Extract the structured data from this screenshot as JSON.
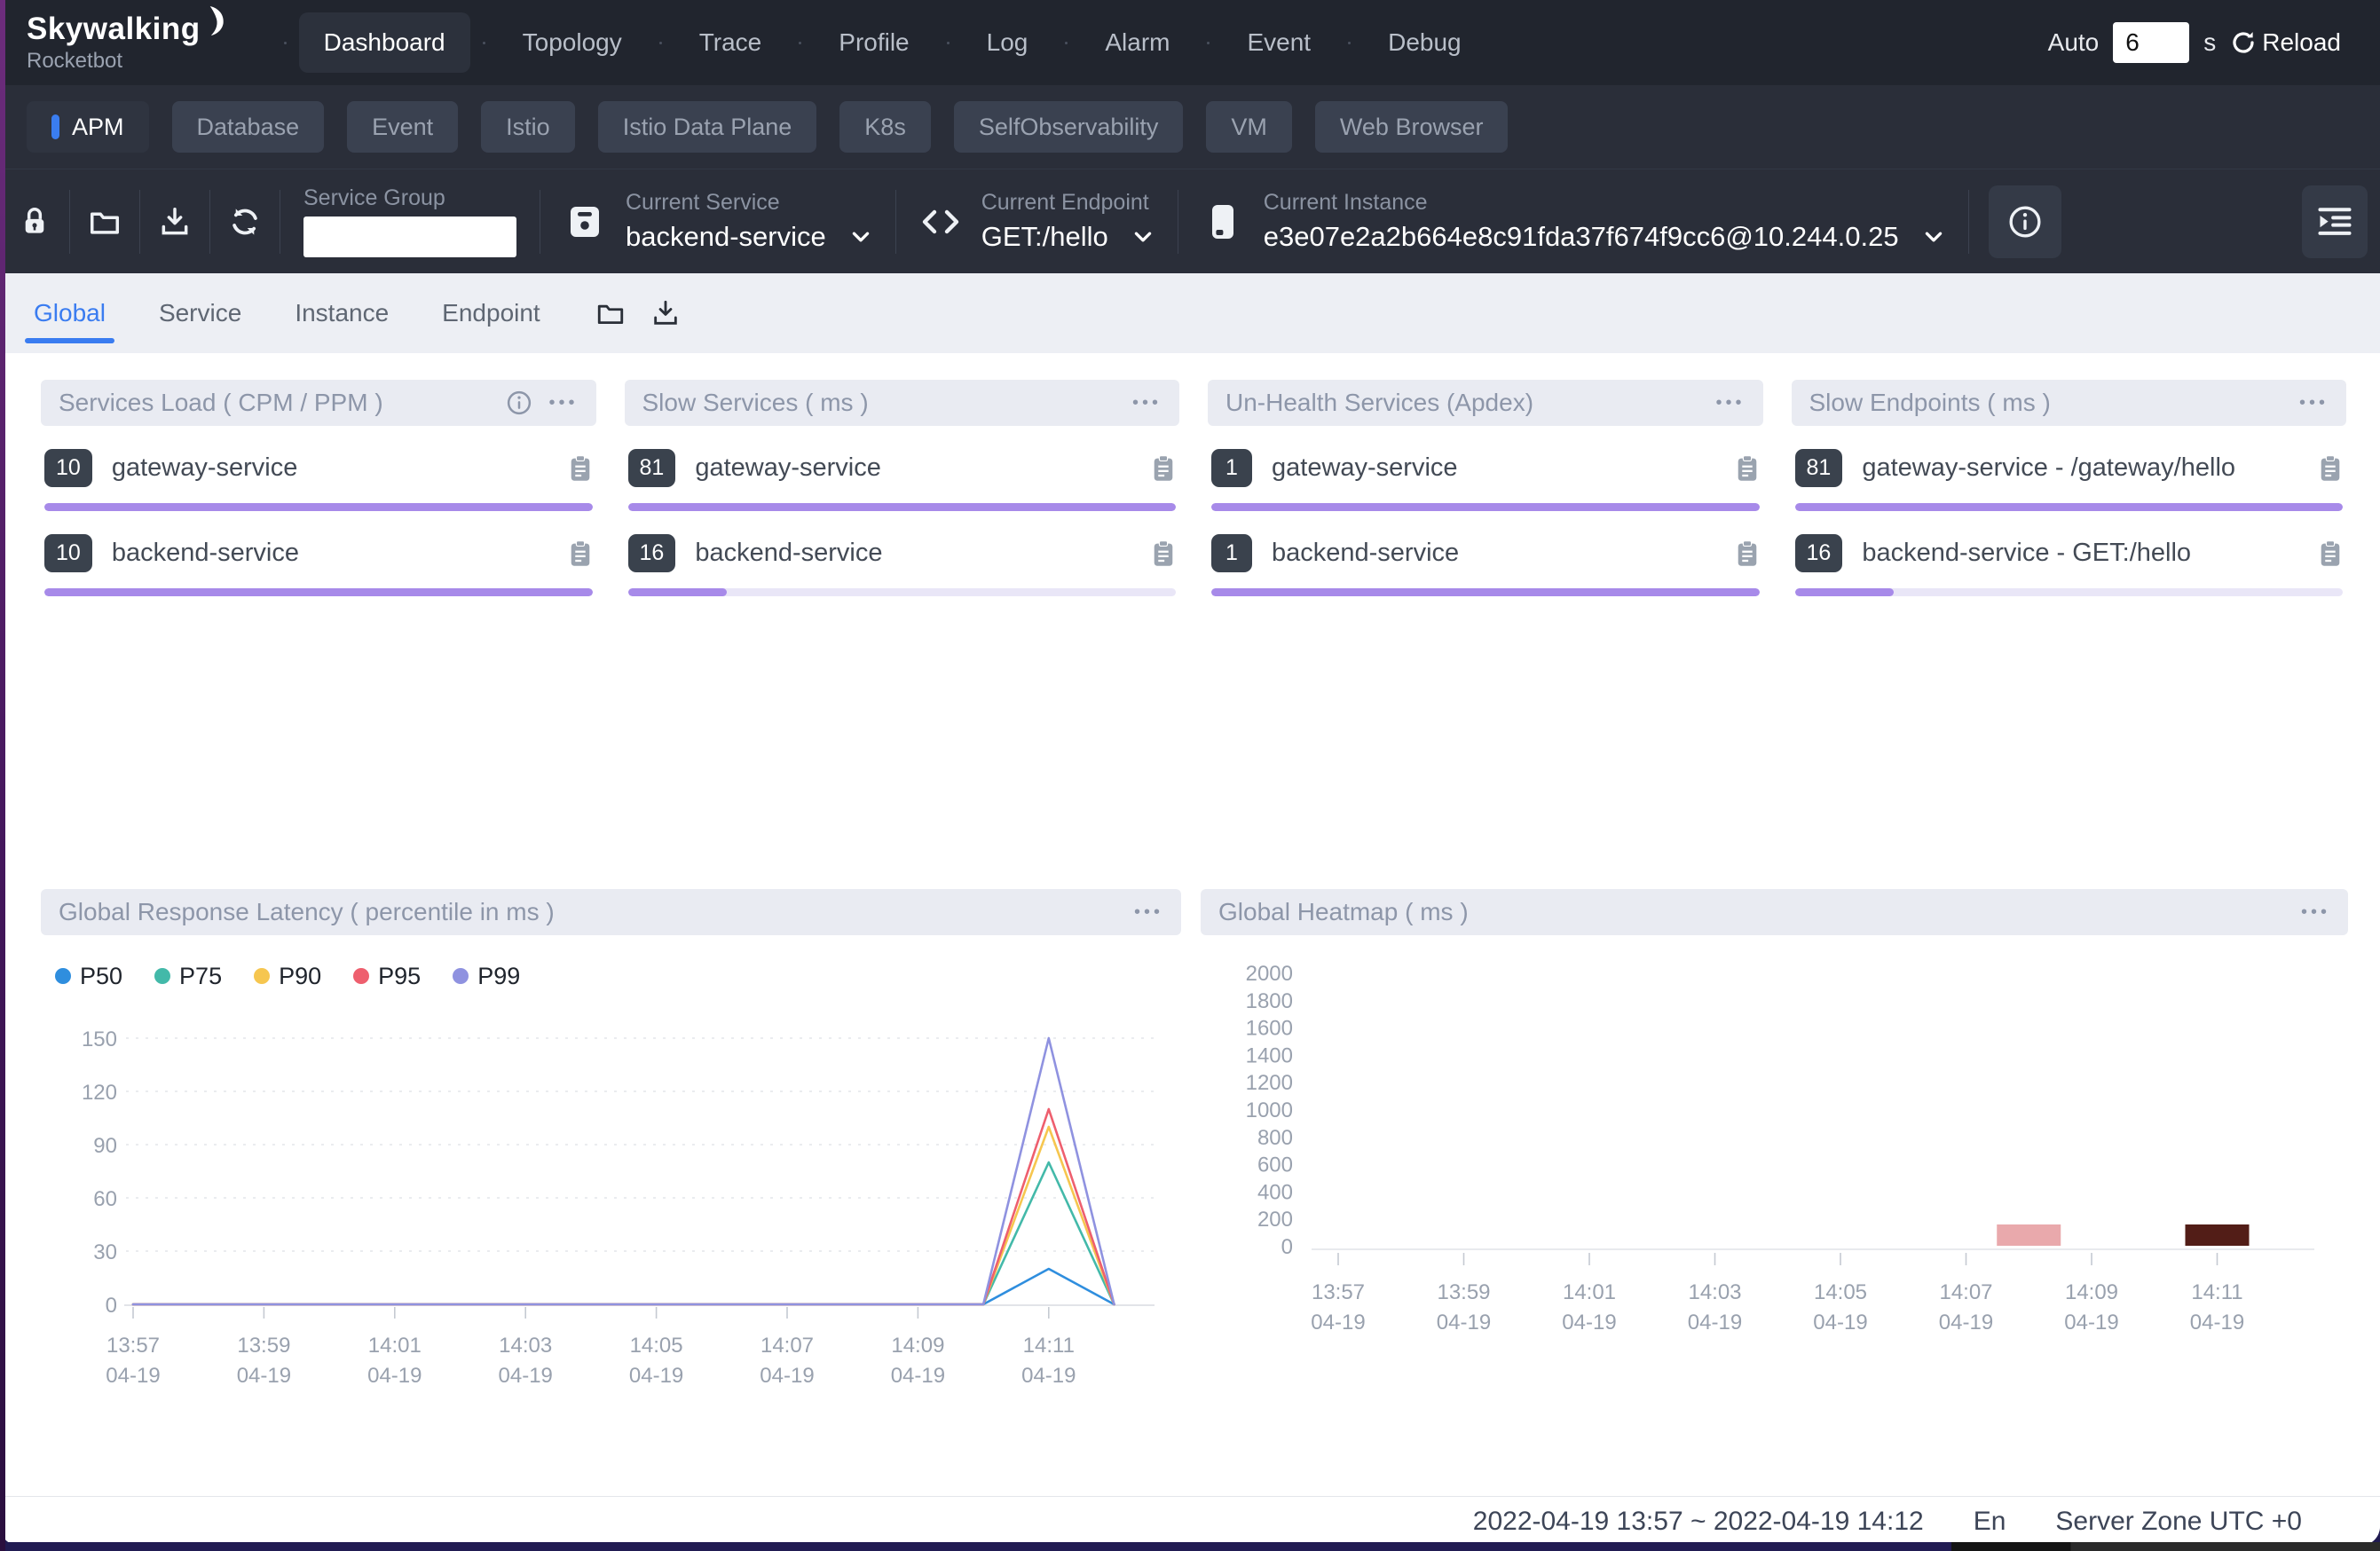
{
  "brand": {
    "name": "Skywalking",
    "subtitle": "Rocketbot"
  },
  "nav": {
    "items": [
      "Dashboard",
      "Topology",
      "Trace",
      "Profile",
      "Log",
      "Alarm",
      "Event",
      "Debug"
    ],
    "active": "Dashboard",
    "auto_label": "Auto",
    "auto_value": "6",
    "auto_unit": "s",
    "reload_label": "Reload"
  },
  "tabs": {
    "items": [
      "APM",
      "Database",
      "Event",
      "Istio",
      "Istio Data Plane",
      "K8s",
      "SelfObservability",
      "VM",
      "Web Browser"
    ],
    "active": "APM"
  },
  "toolbar": {
    "service_group": {
      "label": "Service Group",
      "value": ""
    },
    "current_service": {
      "label": "Current Service",
      "value": "backend-service"
    },
    "current_endpoint": {
      "label": "Current Endpoint",
      "value": "GET:/hello"
    },
    "current_instance": {
      "label": "Current Instance",
      "value": "e3e07e2a2b664e8c91fda37f674f9cc6@10.244.0.25"
    }
  },
  "subtabs": {
    "items": [
      "Global",
      "Service",
      "Instance",
      "Endpoint"
    ],
    "active": "Global"
  },
  "cards": [
    {
      "title": "Services Load ( CPM / PPM )",
      "has_info": true,
      "items": [
        {
          "value": "10",
          "name": "gateway-service",
          "bar_percent": 100
        },
        {
          "value": "10",
          "name": "backend-service",
          "bar_percent": 100
        }
      ]
    },
    {
      "title": "Slow Services ( ms )",
      "has_info": false,
      "items": [
        {
          "value": "81",
          "name": "gateway-service",
          "bar_percent": 100
        },
        {
          "value": "16",
          "name": "backend-service",
          "bar_percent": 18
        }
      ]
    },
    {
      "title": "Un-Health Services (Apdex)",
      "has_info": false,
      "items": [
        {
          "value": "1",
          "name": "gateway-service",
          "bar_percent": 100
        },
        {
          "value": "1",
          "name": "backend-service",
          "bar_percent": 100
        }
      ]
    },
    {
      "title": "Slow Endpoints ( ms )",
      "has_info": false,
      "items": [
        {
          "value": "81",
          "name": "gateway-service - /gateway/hello",
          "bar_percent": 100
        },
        {
          "value": "16",
          "name": "backend-service - GET:/hello",
          "bar_percent": 18
        }
      ]
    }
  ],
  "chart_data": [
    {
      "type": "line",
      "title": "Global Response Latency ( percentile in ms )",
      "x": [
        "13:57",
        "13:58",
        "13:59",
        "14:00",
        "14:01",
        "14:02",
        "14:03",
        "14:04",
        "14:05",
        "14:06",
        "14:07",
        "14:08",
        "14:09",
        "14:10",
        "14:11",
        "14:12"
      ],
      "x_label_date": "04-19",
      "x_tick_every": 2,
      "ylim": [
        0,
        150
      ],
      "y_ticks": [
        0,
        30,
        60,
        90,
        120,
        150
      ],
      "grid": "horizontal-dashed",
      "legend_position": "top-left",
      "series": [
        {
          "name": "P50",
          "color": "#2f8ede",
          "values": [
            0,
            0,
            0,
            0,
            0,
            0,
            0,
            0,
            0,
            0,
            0,
            0,
            0,
            0,
            20,
            0
          ]
        },
        {
          "name": "P75",
          "color": "#43b9a9",
          "values": [
            0,
            0,
            0,
            0,
            0,
            0,
            0,
            0,
            0,
            0,
            0,
            0,
            0,
            0,
            80,
            0
          ]
        },
        {
          "name": "P90",
          "color": "#f6c64f",
          "values": [
            0,
            0,
            0,
            0,
            0,
            0,
            0,
            0,
            0,
            0,
            0,
            0,
            0,
            0,
            100,
            0
          ]
        },
        {
          "name": "P95",
          "color": "#ee5f6e",
          "values": [
            0,
            0,
            0,
            0,
            0,
            0,
            0,
            0,
            0,
            0,
            0,
            0,
            0,
            0,
            110,
            0
          ]
        },
        {
          "name": "P99",
          "color": "#8f92e0",
          "values": [
            0,
            0,
            0,
            0,
            0,
            0,
            0,
            0,
            0,
            0,
            0,
            0,
            0,
            0,
            150,
            0
          ]
        }
      ]
    },
    {
      "type": "heatmap",
      "title": "Global Heatmap ( ms )",
      "x": [
        "13:57",
        "13:58",
        "13:59",
        "14:00",
        "14:01",
        "14:02",
        "14:03",
        "14:04",
        "14:05",
        "14:06",
        "14:07",
        "14:08",
        "14:09",
        "14:10",
        "14:11",
        "14:12"
      ],
      "x_label_date": "04-19",
      "x_tick_every": 2,
      "y_ticks": [
        0,
        200,
        400,
        600,
        800,
        1000,
        1200,
        1400,
        1600,
        1800,
        2000
      ],
      "cells": [
        {
          "time": "14:08",
          "y": 0,
          "color": "#e9a9ac"
        },
        {
          "time": "14:11",
          "y": 0,
          "color": "#521d17"
        }
      ]
    }
  ],
  "colors": {
    "accent_blue": "#3a7df0",
    "bar_purple": "#a78ae9",
    "bar_track": "#e9e6f7",
    "nav_bg": "#21252e",
    "toolbar_bg": "#2a2e39"
  },
  "footer": {
    "time_range": "2022-04-19 13:57 ~ 2022-04-19 14:12",
    "lang": "En",
    "server_zone": "Server Zone UTC +0"
  }
}
